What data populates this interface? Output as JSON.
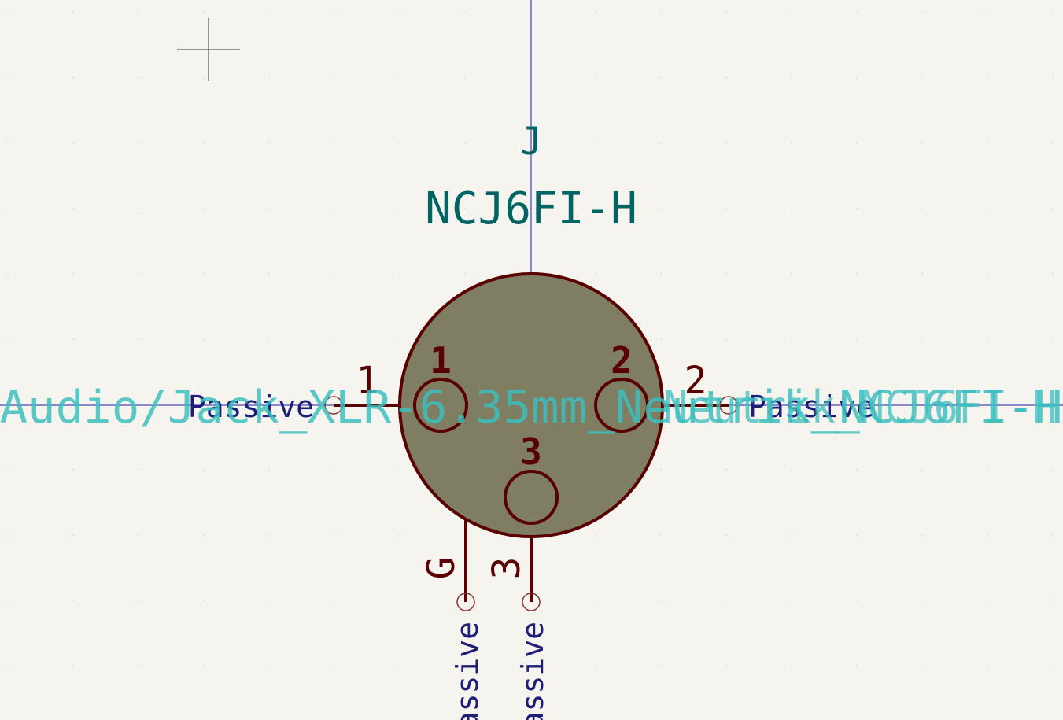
{
  "symbol": {
    "reference": "J",
    "value": "NCJ6FI-H",
    "footprint_left": "Audio/Jack_XLR-6.35mm_Neutrik_NCJ6FI-H",
    "footprint_right": "Neutrik_NCJ6FI-H"
  },
  "pins": [
    {
      "number": "1",
      "label": "1",
      "type": "Passive"
    },
    {
      "number": "2",
      "label": "2",
      "type": "Passive"
    },
    {
      "number": "3",
      "label": "3",
      "type": "Passive"
    },
    {
      "number": "G",
      "label": "",
      "type": "Passive"
    }
  ],
  "colors": {
    "background": "#f5f4ef",
    "body_fill": "#7f7d62",
    "body_stroke": "#590000",
    "ref_value_text": "#006464",
    "pin_type_text": "#1e1e78",
    "field_overlay": "#3cbebe",
    "axis_line": "#1e1eaa",
    "grid": "#d8d8d0"
  }
}
